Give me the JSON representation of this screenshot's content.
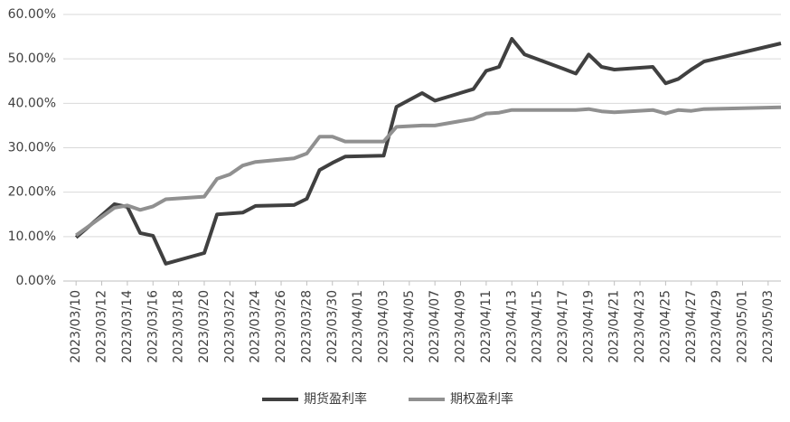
{
  "chart_data": {
    "type": "line",
    "x": [
      "2023/03/10",
      "2023/03/13",
      "2023/03/14",
      "2023/03/15",
      "2023/03/16",
      "2023/03/17",
      "2023/03/20",
      "2023/03/21",
      "2023/03/22",
      "2023/03/23",
      "2023/03/24",
      "2023/03/27",
      "2023/03/28",
      "2023/03/29",
      "2023/03/30",
      "2023/03/31",
      "2023/04/03",
      "2023/04/04",
      "2023/04/06",
      "2023/04/07",
      "2023/04/10",
      "2023/04/11",
      "2023/04/12",
      "2023/04/13",
      "2023/04/14",
      "2023/04/17",
      "2023/04/18",
      "2023/04/19",
      "2023/04/20",
      "2023/04/21",
      "2023/04/24",
      "2023/04/25",
      "2023/04/26",
      "2023/04/27",
      "2023/04/28",
      "2023/05/04"
    ],
    "series": [
      {
        "name": "期货盈利率",
        "color": "#404040",
        "values": [
          9.8,
          17.3,
          16.7,
          10.8,
          10.2,
          3.9,
          6.3,
          15.0,
          15.2,
          15.4,
          16.9,
          17.1,
          18.5,
          25.0,
          26.6,
          28.0,
          28.2,
          39.2,
          42.3,
          40.6,
          43.2,
          47.3,
          48.2,
          54.5,
          51.0,
          47.8,
          46.7,
          51.0,
          48.2,
          47.6,
          48.2,
          44.5,
          45.5,
          47.6,
          49.4,
          53.5
        ]
      },
      {
        "name": "期权盈利率",
        "color": "#909090",
        "values": [
          10.3,
          16.5,
          17.0,
          16.0,
          16.8,
          18.4,
          19.0,
          23.0,
          24.0,
          26.0,
          26.8,
          27.6,
          28.7,
          32.5,
          32.5,
          31.4,
          31.4,
          34.7,
          35.0,
          35.0,
          36.5,
          37.7,
          37.9,
          38.5,
          38.5,
          38.5,
          38.5,
          38.7,
          38.2,
          38.0,
          38.5,
          37.7,
          38.5,
          38.3,
          38.7,
          39.1
        ]
      }
    ],
    "xlim": [
      "2023/03/09",
      "2023/05/04"
    ],
    "xticks": [
      "2023/03/10",
      "2023/03/12",
      "2023/03/14",
      "2023/03/16",
      "2023/03/18",
      "2023/03/20",
      "2023/03/22",
      "2023/03/24",
      "2023/03/26",
      "2023/03/28",
      "2023/03/30",
      "2023/04/01",
      "2023/04/03",
      "2023/04/05",
      "2023/04/07",
      "2023/04/09",
      "2023/04/11",
      "2023/04/13",
      "2023/04/15",
      "2023/04/17",
      "2023/04/19",
      "2023/04/21",
      "2023/04/23",
      "2023/04/25",
      "2023/04/27",
      "2023/04/29",
      "2023/05/01",
      "2023/05/03"
    ],
    "ylim": [
      0,
      60
    ],
    "yticks": [
      {
        "value": 0,
        "label": "0.00%"
      },
      {
        "value": 10,
        "label": "10.00%"
      },
      {
        "value": 20,
        "label": "20.00%"
      },
      {
        "value": 30,
        "label": "30.00%"
      },
      {
        "value": 40,
        "label": "40.00%"
      },
      {
        "value": 50,
        "label": "50.00%"
      },
      {
        "value": 60,
        "label": "60.00%"
      }
    ],
    "grid": true,
    "legend": "bottom"
  }
}
